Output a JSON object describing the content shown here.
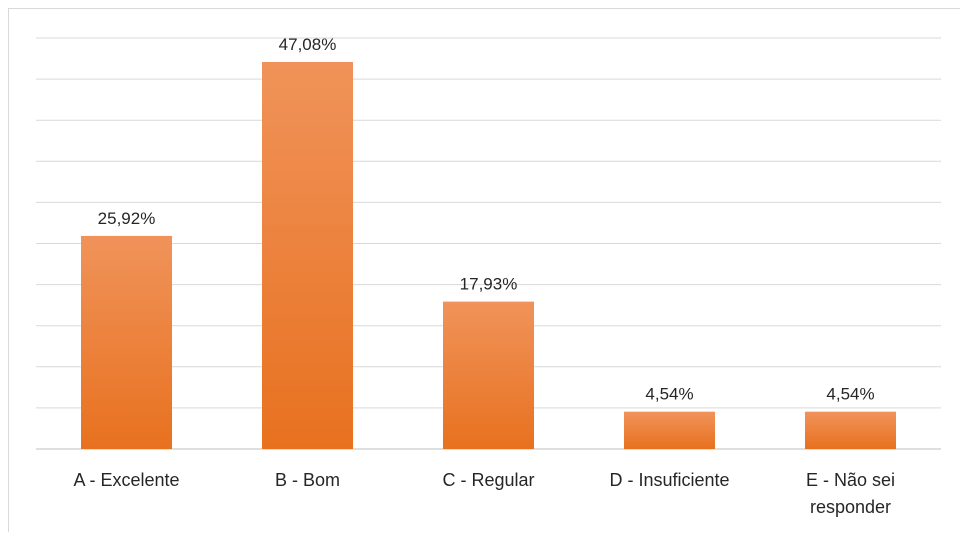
{
  "colors": {
    "bar_top": "#F0935A",
    "bar_bottom": "#E8711F",
    "gridline": "#d9d9d9",
    "axis": "#bfbfbf",
    "text": "#262626"
  },
  "chart_data": {
    "type": "bar",
    "categories": [
      [
        "A - Excelente"
      ],
      [
        "B - Bom"
      ],
      [
        "C - Regular"
      ],
      [
        "D - Insuficiente"
      ],
      [
        "E - Não sei",
        "responder"
      ]
    ],
    "values": [
      25.92,
      47.08,
      17.93,
      4.54,
      4.54
    ],
    "data_labels": [
      "25,92%",
      "47,08%",
      "17,93%",
      "4,54%",
      "4,54%"
    ],
    "title": "",
    "xlabel": "",
    "ylabel": "",
    "ylim": [
      0,
      50
    ],
    "gridlines": true,
    "legend": "none"
  }
}
